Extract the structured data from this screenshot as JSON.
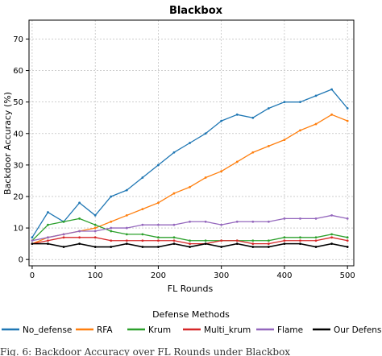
{
  "chart_data": {
    "type": "line",
    "title": "Blackbox",
    "xlabel": "FL Rounds",
    "ylabel": "Backdoor Accuracy (%)",
    "xlim": [
      -5,
      510
    ],
    "ylim": [
      -2,
      76
    ],
    "xticks": [
      0,
      100,
      200,
      300,
      400,
      500
    ],
    "yticks": [
      0,
      10,
      20,
      30,
      40,
      50,
      60,
      70
    ],
    "grid": true,
    "legend": {
      "title": "Defense Methods",
      "placement": "bottom"
    },
    "x": [
      0,
      25,
      50,
      75,
      100,
      125,
      150,
      175,
      200,
      225,
      250,
      275,
      300,
      325,
      350,
      375,
      400,
      425,
      450,
      475,
      500
    ],
    "series": [
      {
        "name": "No_defense",
        "color": "#1f77b4",
        "values": [
          7,
          15,
          12,
          18,
          14,
          20,
          22,
          26,
          30,
          34,
          37,
          40,
          44,
          46,
          45,
          48,
          50,
          50,
          52,
          54,
          48
        ]
      },
      {
        "name": "RFA",
        "color": "#ff7f0e",
        "values": [
          5,
          7,
          8,
          9,
          10,
          12,
          14,
          16,
          18,
          21,
          23,
          26,
          28,
          31,
          34,
          36,
          38,
          41,
          43,
          46,
          44
        ]
      },
      {
        "name": "Krum",
        "color": "#2ca02c",
        "values": [
          6,
          11,
          12,
          13,
          11,
          9,
          8,
          8,
          7,
          7,
          6,
          6,
          6,
          6,
          6,
          6,
          7,
          7,
          7,
          8,
          7
        ]
      },
      {
        "name": "Multi_krum",
        "color": "#d62728",
        "values": [
          5,
          6,
          7,
          7,
          7,
          6,
          6,
          6,
          6,
          6,
          5,
          5,
          6,
          6,
          5,
          5,
          6,
          6,
          6,
          7,
          6
        ]
      },
      {
        "name": "Flame",
        "color": "#9467bd",
        "values": [
          6,
          7,
          8,
          9,
          9,
          10,
          10,
          11,
          11,
          11,
          12,
          12,
          11,
          12,
          12,
          12,
          13,
          13,
          13,
          14,
          13
        ]
      },
      {
        "name": "Our Defense",
        "color": "#000000",
        "values": [
          5,
          5,
          4,
          5,
          4,
          4,
          5,
          4,
          4,
          5,
          4,
          5,
          4,
          5,
          4,
          4,
          5,
          5,
          4,
          5,
          4
        ]
      }
    ]
  },
  "caption": {
    "text": "Fig. 6: Backdoor Accuracy over FL Rounds under Blackbox"
  }
}
